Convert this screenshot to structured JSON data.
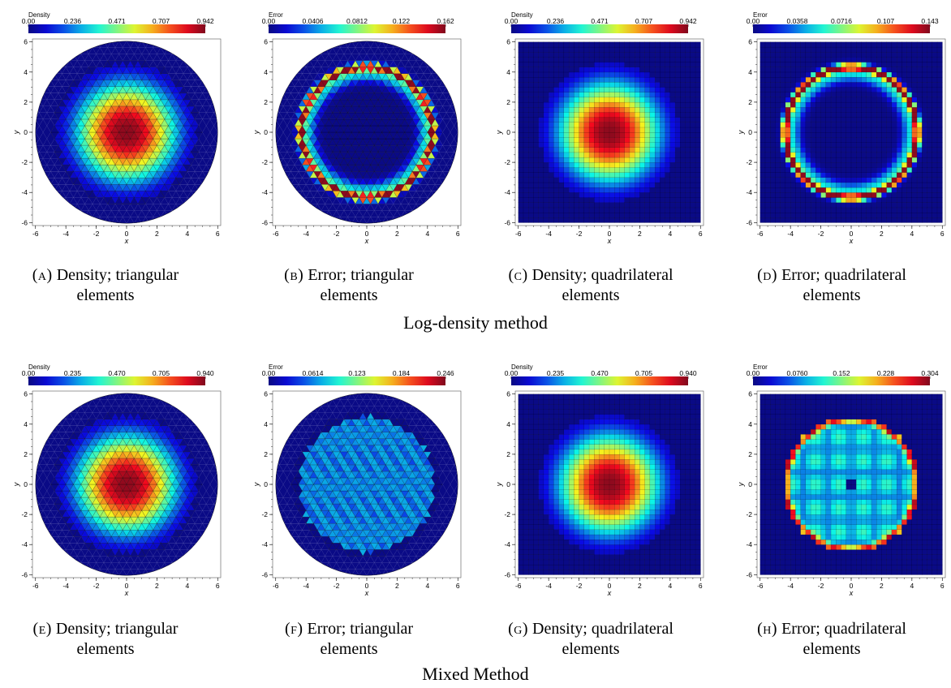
{
  "sections": [
    {
      "title": "Log-density method",
      "panels": [
        {
          "tag": "(a)",
          "caption_line1": "Density; triangular",
          "caption_line2": "elements",
          "colorbar_title": "Density",
          "colorbar_ticks": [
            "0.00",
            "0.236",
            "0.471",
            "0.707",
            "0.942"
          ],
          "mesh": "triangular",
          "domain": "circle",
          "field": "density"
        },
        {
          "tag": "(b)",
          "caption_line1": "Error; triangular",
          "caption_line2": "elements",
          "colorbar_title": "Error",
          "colorbar_ticks": [
            "0.00",
            "0.0406",
            "0.0812",
            "0.122",
            "0.162"
          ],
          "mesh": "triangular",
          "domain": "circle",
          "field": "error"
        },
        {
          "tag": "(c)",
          "caption_line1": "Density; quadrilateral",
          "caption_line2": "elements",
          "colorbar_title": "Density",
          "colorbar_ticks": [
            "0.00",
            "0.236",
            "0.471",
            "0.707",
            "0.942"
          ],
          "mesh": "quadrilateral",
          "domain": "square",
          "field": "density"
        },
        {
          "tag": "(d)",
          "caption_line1": "Error; quadrilateral",
          "caption_line2": "elements",
          "colorbar_title": "Error",
          "colorbar_ticks": [
            "0.00",
            "0.0358",
            "0.0716",
            "0.107",
            "0.143"
          ],
          "mesh": "quadrilateral",
          "domain": "square",
          "field": "error"
        }
      ]
    },
    {
      "title": "Mixed Method",
      "panels": [
        {
          "tag": "(e)",
          "caption_line1": "Density; triangular",
          "caption_line2": "elements",
          "colorbar_title": "Density",
          "colorbar_ticks": [
            "0.00",
            "0.235",
            "0.470",
            "0.705",
            "0.940"
          ],
          "mesh": "triangular",
          "domain": "circle",
          "field": "density"
        },
        {
          "tag": "(f)",
          "caption_line1": "Error; triangular",
          "caption_line2": "elements",
          "colorbar_title": "Error",
          "colorbar_ticks": [
            "0.00",
            "0.0614",
            "0.123",
            "0.184",
            "0.246"
          ],
          "mesh": "triangular",
          "domain": "circle",
          "field": "error"
        },
        {
          "tag": "(g)",
          "caption_line1": "Density; quadrilateral",
          "caption_line2": "elements",
          "colorbar_title": "Density",
          "colorbar_ticks": [
            "0.00",
            "0.235",
            "0.470",
            "0.705",
            "0.940"
          ],
          "mesh": "quadrilateral",
          "domain": "square",
          "field": "density"
        },
        {
          "tag": "(h)",
          "caption_line1": "Error; quadrilateral",
          "caption_line2": "elements",
          "colorbar_title": "Error",
          "colorbar_ticks": [
            "0.00",
            "0.0760",
            "0.152",
            "0.228",
            "0.304"
          ],
          "mesh": "quadrilateral",
          "domain": "square",
          "field": "error"
        }
      ]
    }
  ],
  "axes": {
    "x_label": "x",
    "y_label": "y",
    "tick_labels": [
      "-6",
      "-4",
      "-2",
      "0",
      "2",
      "4",
      "6"
    ]
  },
  "colors": {
    "background_field": "#1a32d6",
    "mesh_lines": "#000000"
  }
}
